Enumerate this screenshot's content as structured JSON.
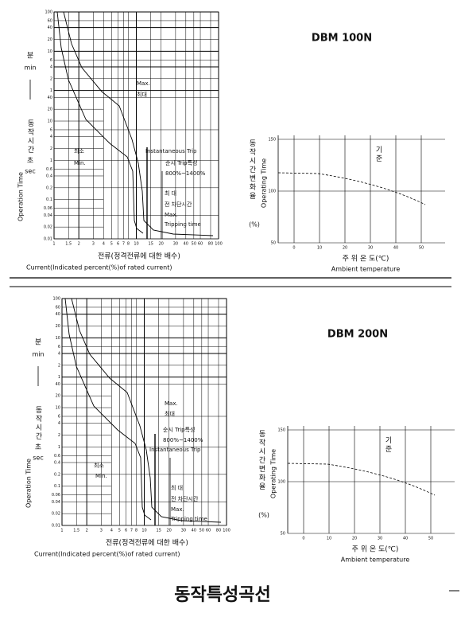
{
  "panels": [
    {
      "title": "DBM 100N",
      "trip_chart": {
        "y_min_ko": "분",
        "y_min": "min",
        "y_ko": "동작시간",
        "y_sec_ko": "초",
        "y_sec": "sec",
        "y_en": "Operation Time",
        "minute_ticks": [
          100,
          60,
          40,
          20,
          10,
          6,
          4,
          2,
          1
        ],
        "second_ticks": [
          40,
          20,
          10,
          6,
          4,
          2,
          1,
          0.6,
          0.4,
          0.2,
          0.1,
          0.06,
          0.04,
          0.02,
          0.01
        ],
        "x_ticks": [
          1,
          1.5,
          2,
          3,
          4,
          5,
          6,
          7,
          8,
          10,
          15,
          20,
          30,
          40,
          50,
          60,
          80,
          100
        ],
        "annotations": [
          "Max.",
          "최대",
          "Instantaneous Trip",
          "순시 Trip특성",
          "800%~1400%",
          "최소",
          "Min.",
          "최 대",
          "전 차단시간",
          "Max.",
          "Tripping time"
        ],
        "x_label_ko": "전류(정격전류에 대한 배수)",
        "x_label_en": "Current(Indicated percent(%)of rated current)"
      },
      "temp_chart": {
        "y_label_ko": "동작시간변화율",
        "y_unit": "(%)",
        "y_label_en": "Operating Time",
        "y_ticks": [
          150,
          100,
          50
        ],
        "x_ticks": [
          0,
          10,
          20,
          30,
          40,
          50
        ],
        "ref_label": "기준",
        "x_label_ko": "주 위 온 도(℃)",
        "x_label_en": "Ambient temperature"
      }
    },
    {
      "title": "DBM 200N",
      "trip_chart": {
        "y_min_ko": "분",
        "y_min": "min",
        "y_ko": "동작시간",
        "y_sec_ko": "초",
        "y_sec": "sec",
        "y_en": "Operation Time",
        "minute_ticks": [
          100,
          60,
          40,
          20,
          10,
          6,
          4,
          2,
          1
        ],
        "second_ticks": [
          40,
          20,
          10,
          6,
          4,
          2,
          1,
          0.6,
          0.4,
          0.2,
          0.1,
          0.06,
          0.04,
          0.02,
          0.01
        ],
        "x_ticks": [
          1,
          1.5,
          2,
          3,
          4,
          5,
          6,
          7,
          8,
          10,
          15,
          20,
          30,
          40,
          50,
          60,
          80,
          100
        ],
        "annotations": [
          "Max.",
          "최대",
          "Instantaneous Trip",
          "순시 Trip특성",
          "800%~1400%",
          "최소",
          "Min.",
          "최 대",
          "전 차단시간",
          "Max.",
          "Tripping time"
        ],
        "x_label_ko": "전류(정격전류에 대한 배수)",
        "x_label_en": "Current(Indicated percent(%)of rated current)"
      },
      "temp_chart": {
        "y_label_ko": "동작시간변화율",
        "y_unit": "(%)",
        "y_label_en": "Operating Time",
        "y_ticks": [
          150,
          100,
          50
        ],
        "x_ticks": [
          0,
          10,
          20,
          30,
          40,
          50
        ],
        "ref_label": "기준",
        "x_label_ko": "주 위 온 도(℃)",
        "x_label_en": "Ambient temperature"
      }
    }
  ],
  "footer_title": "동작특성곡선"
}
